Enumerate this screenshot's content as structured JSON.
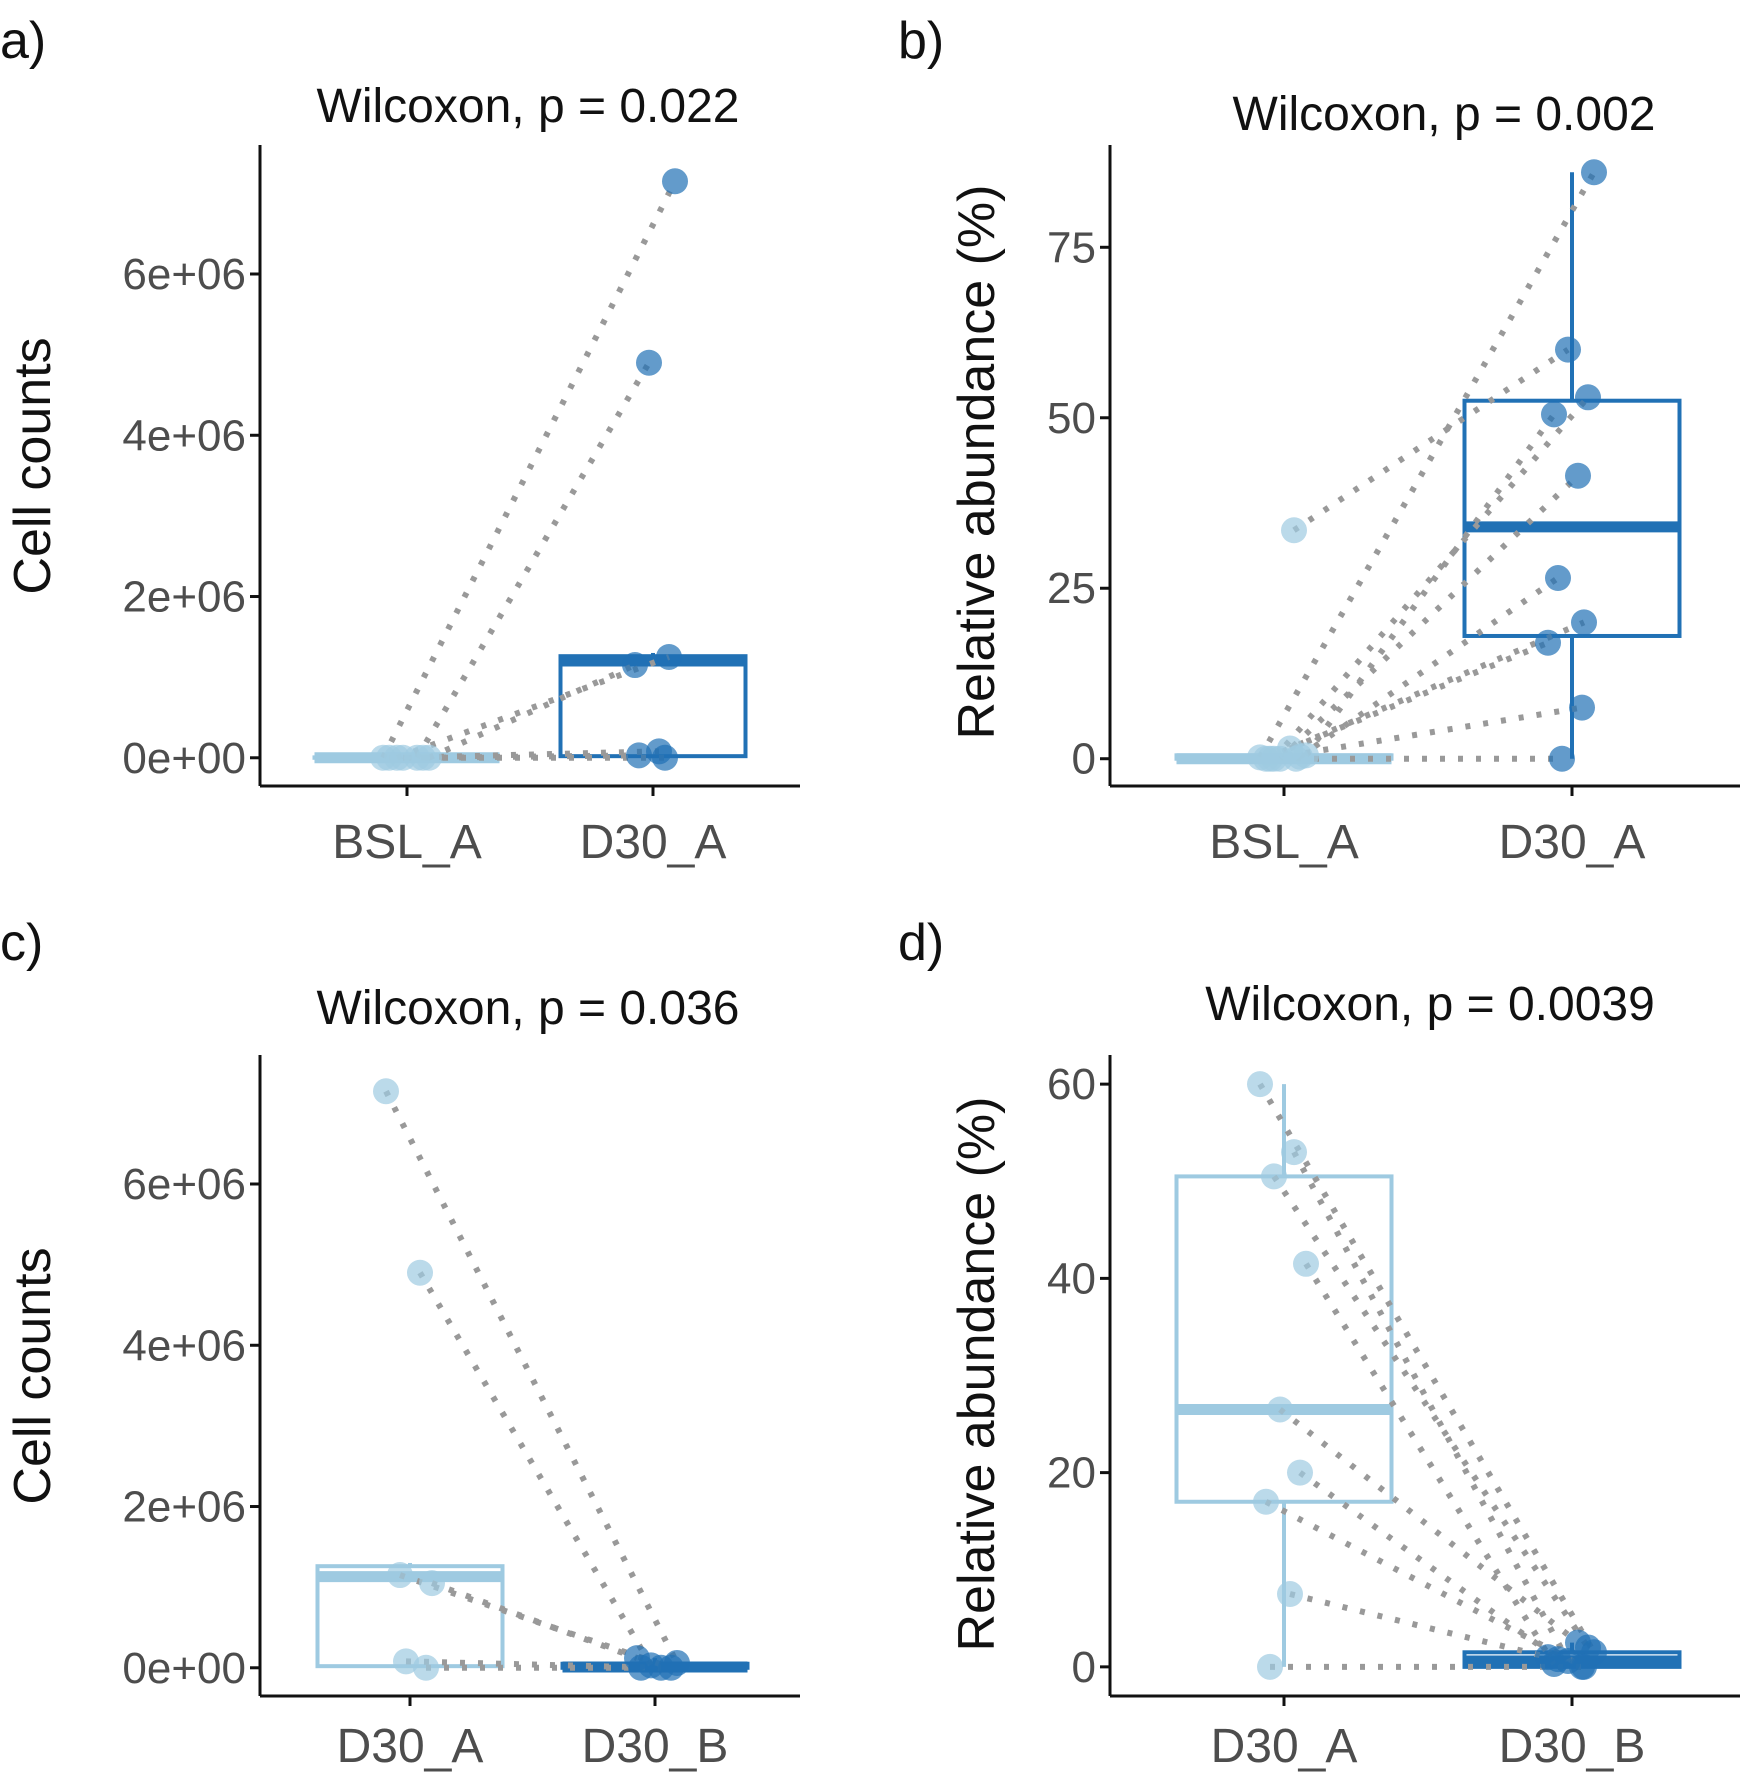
{
  "colors": {
    "light": "#9ecae1",
    "dark": "#2171b5",
    "line": "#999999",
    "axis": "#111111",
    "tick": "#4d4d4d"
  },
  "chart_data": [
    {
      "type": "boxplot",
      "panel_label": "a)",
      "title": "Wilcoxon, p = 0.022",
      "ylabel": "Cell counts",
      "xlabel": "",
      "categories": [
        "BSL_A",
        "D30_A"
      ],
      "ylim": [
        -350000,
        7600000
      ],
      "yticks": [
        0,
        2000000,
        4000000,
        6000000
      ],
      "ytick_labels": [
        "0e+00",
        "2e+06",
        "4e+06",
        "6e+06"
      ],
      "boxes": [
        {
          "group": "BSL_A",
          "q1": 0,
          "median": 0,
          "q3": 5000,
          "whisker_low": 0,
          "whisker_high": 5000,
          "color": "light"
        },
        {
          "group": "D30_A",
          "q1": 20000,
          "median": 1200000,
          "q3": 1260000,
          "whisker_low": 0,
          "whisker_high": 1300000,
          "color": "dark"
        }
      ],
      "pairs": [
        {
          "from": 0,
          "to": 7150000
        },
        {
          "from": 0,
          "to": 4900000
        },
        {
          "from": 0,
          "to": 1250000
        },
        {
          "from": 0,
          "to": 1150000
        },
        {
          "from": 0,
          "to": 80000
        },
        {
          "from": 0,
          "to": 30000
        },
        {
          "from": 0,
          "to": 0
        }
      ]
    },
    {
      "type": "boxplot",
      "panel_label": "b)",
      "title": "Wilcoxon, p = 0.002",
      "ylabel": "Relative abundance (%)",
      "xlabel": "",
      "categories": [
        "BSL_A",
        "D30_A"
      ],
      "ylim": [
        -4,
        90
      ],
      "yticks": [
        0,
        25,
        50,
        75
      ],
      "ytick_labels": [
        "0",
        "25",
        "50",
        "75"
      ],
      "boxes": [
        {
          "group": "BSL_A",
          "q1": 0,
          "median": 0,
          "q3": 0.5,
          "whisker_low": 0,
          "whisker_high": 0.5,
          "color": "light"
        },
        {
          "group": "D30_A",
          "q1": 18,
          "median": 34,
          "q3": 52.5,
          "whisker_low": 0,
          "whisker_high": 86,
          "color": "dark"
        }
      ],
      "pairs": [
        {
          "from": 0.2,
          "to": 86
        },
        {
          "from": 33.5,
          "to": 60
        },
        {
          "from": 0,
          "to": 53
        },
        {
          "from": 0.5,
          "to": 50.5
        },
        {
          "from": 0,
          "to": 41.5
        },
        {
          "from": 0.3,
          "to": 26.5
        },
        {
          "from": 0,
          "to": 20
        },
        {
          "from": 1.5,
          "to": 17
        },
        {
          "from": 0,
          "to": 7.5
        },
        {
          "from": 0,
          "to": 0
        }
      ]
    },
    {
      "type": "boxplot",
      "panel_label": "c)",
      "title": "Wilcoxon, p = 0.036",
      "ylabel": "Cell counts",
      "xlabel": "",
      "categories": [
        "D30_A",
        "D30_B"
      ],
      "ylim": [
        -350000,
        7600000
      ],
      "yticks": [
        0,
        2000000,
        4000000,
        6000000
      ],
      "ytick_labels": [
        "0e+00",
        "2e+06",
        "4e+06",
        "6e+06"
      ],
      "boxes": [
        {
          "group": "D30_A",
          "q1": 20000,
          "median": 1130000,
          "q3": 1260000,
          "whisker_low": 0,
          "whisker_high": 1300000,
          "color": "light"
        },
        {
          "group": "D30_B",
          "q1": 0,
          "median": 10000,
          "q3": 50000,
          "whisker_low": 0,
          "whisker_high": 120000,
          "color": "dark"
        }
      ],
      "pairs": [
        {
          "from": 7150000,
          "to": 60000
        },
        {
          "from": 4900000,
          "to": 30000
        },
        {
          "from": 1150000,
          "to": 0
        },
        {
          "from": 1050000,
          "to": 120000
        },
        {
          "from": 80000,
          "to": 0
        },
        {
          "from": 0,
          "to": 0
        }
      ]
    },
    {
      "type": "boxplot",
      "panel_label": "d)",
      "title": "Wilcoxon, p = 0.0039",
      "ylabel": "Relative abundance (%)",
      "xlabel": "",
      "categories": [
        "D30_A",
        "D30_B"
      ],
      "ylim": [
        -3,
        63
      ],
      "yticks": [
        0,
        20,
        40,
        60
      ],
      "ytick_labels": [
        "0",
        "20",
        "40",
        "60"
      ],
      "boxes": [
        {
          "group": "D30_A",
          "q1": 17,
          "median": 26.5,
          "q3": 50.5,
          "whisker_low": 0,
          "whisker_high": 60,
          "color": "light"
        },
        {
          "group": "D30_B",
          "q1": 0,
          "median": 0.6,
          "q3": 1.5,
          "whisker_low": 0,
          "whisker_high": 2.5,
          "color": "dark"
        }
      ],
      "pairs": [
        {
          "from": 60,
          "to": 1.5
        },
        {
          "from": 53,
          "to": 0.6
        },
        {
          "from": 50.5,
          "to": 2
        },
        {
          "from": 41.5,
          "to": 0.3
        },
        {
          "from": 26.5,
          "to": 2.5
        },
        {
          "from": 20,
          "to": 0.8
        },
        {
          "from": 17,
          "to": 0
        },
        {
          "from": 7.5,
          "to": 1
        },
        {
          "from": 0,
          "to": 0
        }
      ]
    }
  ]
}
